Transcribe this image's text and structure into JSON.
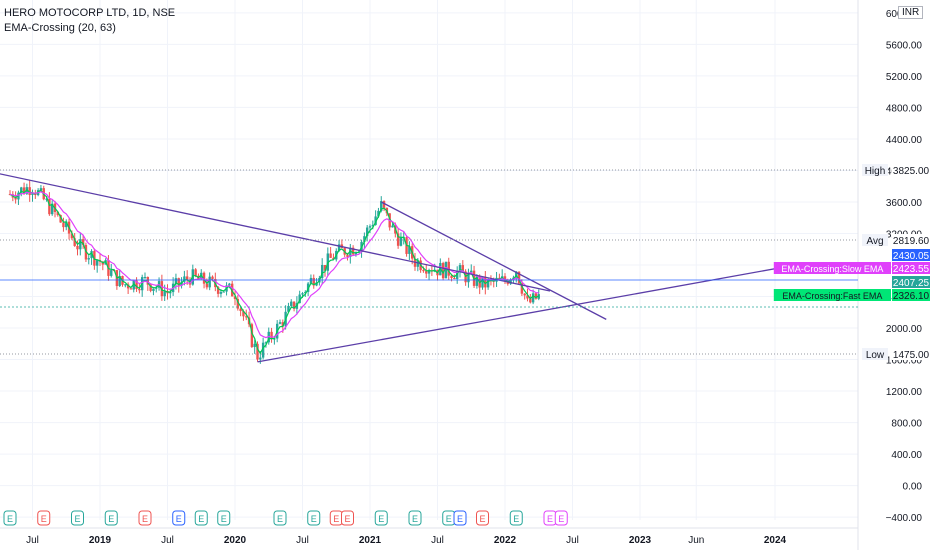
{
  "header": {
    "symbol_line": "HERO MOTOCORP LTD, 1D, NSE",
    "indicator_line": "EMA-Crossing (20, 63)"
  },
  "currency": "INR",
  "colors": {
    "candle_up": "#26a69a",
    "candle_down": "#ef5350",
    "trendline": "#5b3ea8",
    "slow_ema": "#e040fb",
    "fast_ema": "#00c853",
    "price_line": "#2962ff",
    "grid": "#f0f3fa"
  },
  "chart_data": {
    "type": "candlestick",
    "x_ticks": [
      "Jul",
      "2019",
      "Jul",
      "2020",
      "Jul",
      "2021",
      "Jul",
      "2022",
      "Jul",
      "2023",
      "Jun",
      "2024"
    ],
    "y_ticks": [
      "6000.00",
      "5600.00",
      "5200.00",
      "4800.00",
      "4400.00",
      "4000.00",
      "3600.00",
      "3200.00",
      "2800.00",
      "2400.00",
      "2000.00",
      "1600.00",
      "1200.00",
      "800.00",
      "400.00",
      "0.00",
      "−400.00"
    ],
    "ylim": [
      -500,
      6100
    ],
    "x_range": [
      "2018-05",
      "2024-06"
    ],
    "price_path": [
      [
        "2018-05",
        3700
      ],
      [
        "2018-07",
        3800
      ],
      [
        "2018-09",
        3450
      ],
      [
        "2018-11",
        3050
      ],
      [
        "2019-01",
        2850
      ],
      [
        "2019-03",
        2550
      ],
      [
        "2019-05",
        2600
      ],
      [
        "2019-07",
        2450
      ],
      [
        "2019-09",
        2650
      ],
      [
        "2019-11",
        2550
      ],
      [
        "2020-01",
        2450
      ],
      [
        "2020-03",
        1650
      ],
      [
        "2020-04",
        1850
      ],
      [
        "2020-06",
        2250
      ],
      [
        "2020-08",
        2650
      ],
      [
        "2020-10",
        2950
      ],
      [
        "2020-12",
        3050
      ],
      [
        "2021-02",
        3550
      ],
      [
        "2021-03",
        3250
      ],
      [
        "2021-05",
        2850
      ],
      [
        "2021-07",
        2750
      ],
      [
        "2021-09",
        2700
      ],
      [
        "2021-11",
        2550
      ],
      [
        "2022-01",
        2600
      ],
      [
        "2022-02",
        2750
      ],
      [
        "2022-03",
        2300
      ],
      [
        "2022-04",
        2400
      ]
    ],
    "trendlines": [
      {
        "from": [
          "2018-04",
          3960
        ],
        "to": [
          "2022-05",
          2470
        ]
      },
      {
        "from": [
          "2020-03",
          1570
        ],
        "to": [
          "2024-04",
          2830
        ]
      },
      {
        "from": [
          "2021-02",
          3600
        ],
        "to": [
          "2022-10",
          2110
        ]
      }
    ],
    "price_labels": [
      {
        "label": "High",
        "value": "3825.00"
      },
      {
        "label": "Avg",
        "value": "2819.60"
      },
      {
        "label": "",
        "value": "2430.05"
      },
      {
        "label": "EMA-Crossing:Slow EMA",
        "value": "2423.55"
      },
      {
        "label": "",
        "value": "2407.25"
      },
      {
        "label": "EMA-Crossing:Fast EMA",
        "value": "2326.10"
      },
      {
        "label": "Low",
        "value": "1475.00"
      }
    ],
    "event_marker_glyph": "E",
    "event_markers": [
      "2018-05",
      "2018-08",
      "2018-11",
      "2019-02",
      "2019-05",
      "2019-08",
      "2019-10",
      "2019-12",
      "2020-05",
      "2020-08",
      "2020-10",
      "2020-11",
      "2021-02",
      "2021-05",
      "2021-08",
      "2021-09",
      "2021-11",
      "2022-02",
      "2022-05",
      "2022-06"
    ]
  }
}
